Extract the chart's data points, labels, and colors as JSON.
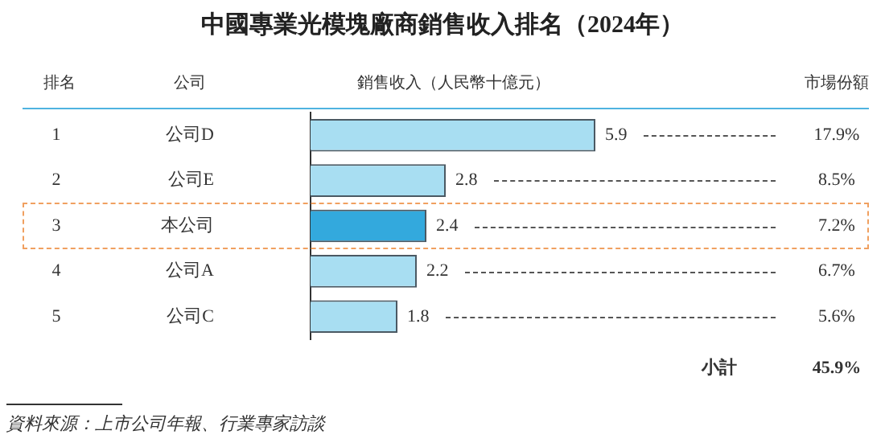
{
  "chart_data": {
    "type": "bar",
    "orientation": "horizontal",
    "title": "中國專業光模塊廠商銷售收入排名（2024年）",
    "xlabel": "銷售收入（人民幣十億元）",
    "ylabel": "公司",
    "categories": [
      "公司D",
      "公司E",
      "本公司",
      "公司A",
      "公司C"
    ],
    "values": [
      5.9,
      2.8,
      2.4,
      2.2,
      1.8
    ],
    "colors": [
      "#a8def2",
      "#a8def2",
      "#33a9dd",
      "#a8def2",
      "#a8def2"
    ],
    "data_labels": true,
    "grid": false,
    "legend": false,
    "annotations": [
      "1",
      "17.9%",
      "2",
      "8.5%",
      "3",
      "7.2%",
      "4",
      "6.7%",
      "5",
      "5.6%",
      "排名",
      "市場份額",
      "小計",
      "45.9%",
      "資料來源：上市公司年報、行業專家訪談"
    ]
  }
}
